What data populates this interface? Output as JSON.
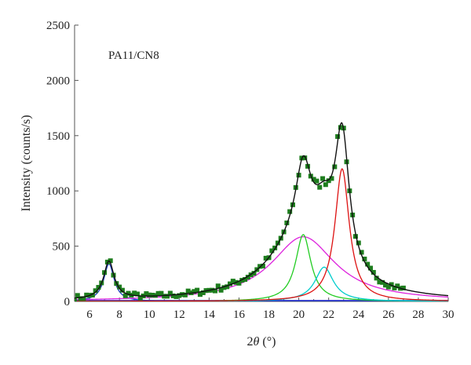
{
  "chart_data": {
    "type": "line",
    "annotation": "PA11/CN8",
    "xlabel_prefix": "2",
    "xlabel_symbol": "θ",
    "xlabel_suffix": " (°)",
    "ylabel": "Intensity (counts/s)",
    "xlim": [
      5,
      30
    ],
    "ylim": [
      0,
      2500
    ],
    "x_ticks": [
      6,
      8,
      10,
      12,
      14,
      16,
      18,
      20,
      22,
      24,
      26,
      28,
      30
    ],
    "y_ticks": [
      0,
      500,
      1000,
      1500,
      2000,
      2500
    ],
    "grid": false,
    "legend": "none",
    "baseline_color": "#3030cc",
    "observed": {
      "color": "#1e7d1e",
      "x_range": [
        5.0,
        27.0
      ],
      "step": 0.2,
      "noise": 25
    },
    "fit_color": "#111111",
    "fit_x_range": [
      5.0,
      30.0
    ],
    "component_peaks": [
      {
        "color": "#1f3fbf",
        "center": 7.3,
        "height": 340,
        "width": 0.42,
        "shape": "lorentzian"
      },
      {
        "color": "#dd22dd",
        "center": 20.3,
        "height": 585,
        "width": 2.6,
        "shape": "lorentzian"
      },
      {
        "color": "#22cc22",
        "center": 20.3,
        "height": 605,
        "width": 0.62,
        "shape": "lorentzian"
      },
      {
        "color": "#00cccc",
        "center": 21.7,
        "height": 310,
        "width": 0.75,
        "shape": "lorentzian"
      },
      {
        "color": "#dd1111",
        "center": 22.9,
        "height": 1200,
        "width": 0.58,
        "shape": "lorentzian"
      }
    ]
  }
}
